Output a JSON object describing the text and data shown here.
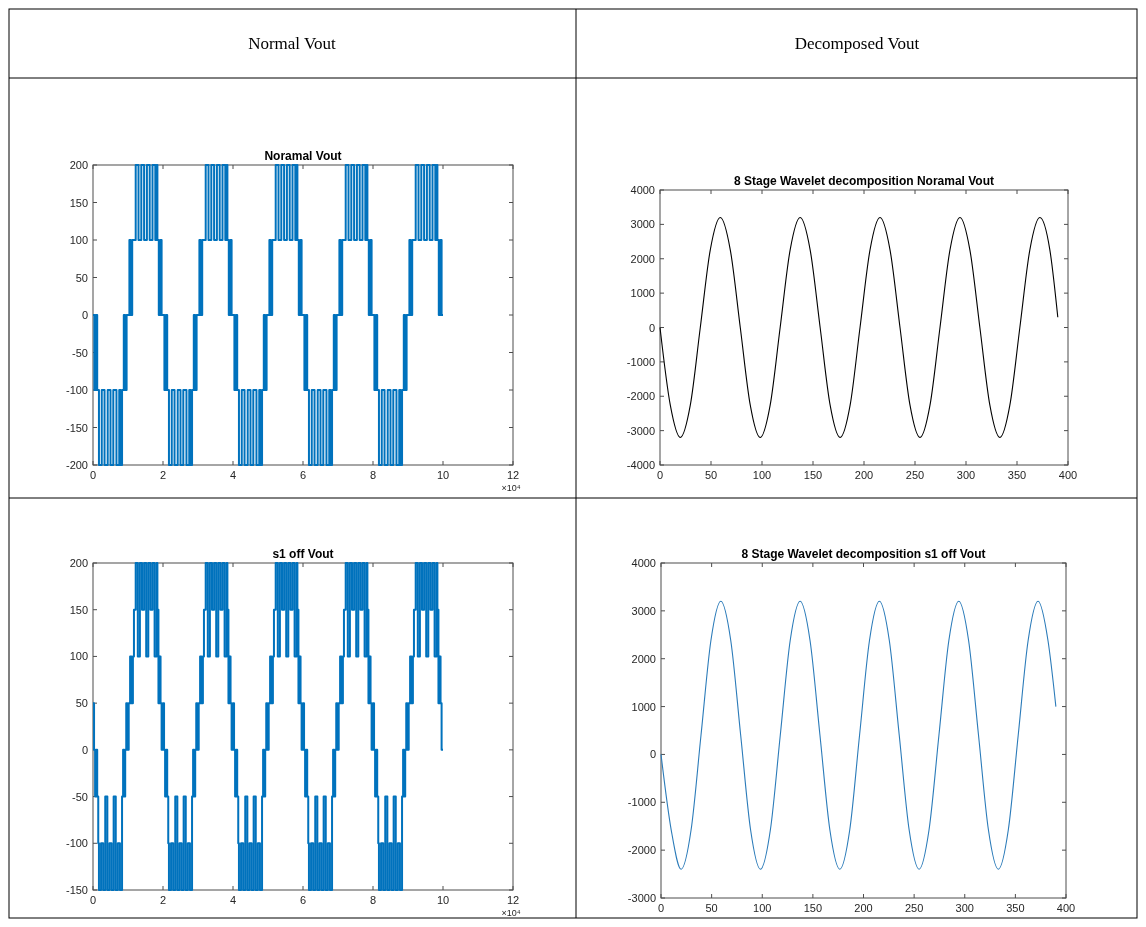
{
  "chart_data": [
    {
      "type": "step",
      "title": "Noramal Vout",
      "annotations": [
        "Normal Vout",
        "×10⁴"
      ],
      "xlim": [
        0,
        12
      ],
      "xticks": [
        0,
        2,
        4,
        6,
        8,
        10,
        12
      ],
      "ylim": [
        -200,
        200
      ],
      "yticks": [
        -200,
        -150,
        -100,
        -50,
        0,
        50,
        100,
        150,
        200
      ],
      "series": [
        {
          "color": "#0072bd",
          "x": [
            0,
            0.04,
            0.08,
            0.12,
            0.17,
            0.25,
            0.33,
            0.42,
            0.5,
            0.58,
            0.67,
            0.75,
            0.79,
            0.83,
            0.88,
            0.92,
            0.96,
            1.04,
            1.08,
            1.12,
            1.22,
            1.3,
            1.38,
            1.46,
            1.54,
            1.62,
            1.7,
            1.78,
            1.82,
            1.84,
            1.88,
            1.92,
            1.96,
            2,
            2.04,
            2.08,
            2.12,
            2.17,
            2.25,
            2.33,
            2.42,
            2.5,
            2.58,
            2.67,
            2.75,
            2.79,
            2.83,
            2.88,
            2.92,
            2.96,
            3.04,
            3.08,
            3.12,
            3.22,
            3.3,
            3.38,
            3.46,
            3.54,
            3.62,
            3.7,
            3.78,
            3.82,
            3.84,
            3.88,
            3.92,
            3.96,
            4,
            4.04,
            4.08,
            4.12,
            4.17,
            4.25,
            4.33,
            4.42,
            4.5,
            4.58,
            4.67,
            4.75,
            4.79,
            4.83,
            4.88,
            4.92,
            4.96,
            5.04,
            5.08,
            5.12,
            5.22,
            5.3,
            5.38,
            5.46,
            5.54,
            5.62,
            5.7,
            5.78,
            5.82,
            5.84,
            5.88,
            5.92,
            5.96,
            6,
            6.04,
            6.08,
            6.12,
            6.17,
            6.25,
            6.33,
            6.42,
            6.5,
            6.58,
            6.67,
            6.75,
            6.79,
            6.83,
            6.88,
            6.92,
            6.96,
            7.04,
            7.08,
            7.12,
            7.22,
            7.3,
            7.38,
            7.46,
            7.54,
            7.62,
            7.7,
            7.78,
            7.82,
            7.84,
            7.88,
            7.92,
            7.96,
            8,
            8.04,
            8.08,
            8.12,
            8.17,
            8.25,
            8.33,
            8.42,
            8.5,
            8.58,
            8.67,
            8.75,
            8.79,
            8.83,
            8.88,
            8.92,
            8.96,
            9.04,
            9.08,
            9.12,
            9.22,
            9.3,
            9.38,
            9.46,
            9.54,
            9.62,
            9.7,
            9.78,
            9.82,
            9.84,
            9.88,
            9.92,
            9.96,
            10
          ],
          "values": [
            0,
            -100,
            0,
            -100,
            -200,
            -100,
            -200,
            -100,
            -200,
            -100,
            -200,
            -100,
            -200,
            -100,
            0,
            -100,
            0,
            100,
            0,
            100,
            200,
            100,
            200,
            100,
            200,
            100,
            200,
            100,
            200,
            100,
            0,
            100,
            0,
            0,
            -100,
            0,
            -100,
            -200,
            -100,
            -200,
            -100,
            -200,
            -100,
            -200,
            -100,
            -200,
            -100,
            0,
            -100,
            0,
            100,
            0,
            100,
            200,
            100,
            200,
            100,
            200,
            100,
            200,
            100,
            200,
            100,
            0,
            100,
            0,
            0,
            -100,
            0,
            -100,
            -200,
            -100,
            -200,
            -100,
            -200,
            -100,
            -200,
            -100,
            -200,
            -100,
            0,
            -100,
            0,
            100,
            0,
            100,
            200,
            100,
            200,
            100,
            200,
            100,
            200,
            100,
            200,
            100,
            0,
            100,
            0,
            0,
            -100,
            0,
            -100,
            -200,
            -100,
            -200,
            -100,
            -200,
            -100,
            -200,
            -100,
            -200,
            -100,
            0,
            -100,
            0,
            100,
            0,
            100,
            200,
            100,
            200,
            100,
            200,
            100,
            200,
            100,
            200,
            100,
            0,
            100,
            0,
            0,
            -100,
            0,
            -100,
            -200,
            -100,
            -200,
            -100,
            -200,
            -100,
            -200,
            -100,
            -200,
            -100,
            0,
            -100,
            0,
            100,
            0,
            100,
            200,
            100,
            200,
            100,
            200,
            100,
            200,
            100,
            200,
            100,
            0,
            100,
            0,
            0
          ]
        }
      ]
    },
    {
      "type": "line",
      "title": "8 Stage Wavelet decomposition Noramal Vout",
      "annotations": [
        "Decomposed Vout"
      ],
      "xlim": [
        0,
        400
      ],
      "xticks": [
        0,
        50,
        100,
        150,
        200,
        250,
        300,
        350,
        400
      ],
      "ylim": [
        -4000,
        4000
      ],
      "yticks": [
        -4000,
        -3000,
        -2000,
        -1000,
        0,
        1000,
        2000,
        3000,
        4000
      ],
      "series": [
        {
          "color": "#000000",
          "x": [
            0,
            10.1,
            19.9,
            29.7,
            39.5,
            49.3,
            59.1,
            68.9,
            78.7,
            88.5,
            98.2,
            108.0,
            117.8,
            127.6,
            137.4,
            147.2,
            157.0,
            166.8,
            176.6,
            186.4,
            196.1,
            205.9,
            215.7,
            225.5,
            235.3,
            245.1,
            254.9,
            264.7,
            274.5,
            284.3,
            294.1,
            303.8,
            313.6,
            323.4,
            333.2,
            343.0,
            352.8,
            362.6,
            372.4,
            382.2,
            390
          ],
          "values": [
            0,
            -2260,
            -3200,
            -2260,
            0,
            2260,
            3200,
            2260,
            0,
            -2260,
            -3200,
            -2260,
            0,
            2260,
            3200,
            2260,
            0,
            -2260,
            -3200,
            -2260,
            0,
            2260,
            3200,
            2260,
            0,
            -2260,
            -3200,
            -2260,
            0,
            2260,
            3200,
            2260,
            0,
            -2260,
            -3200,
            -2260,
            0,
            2260,
            3200,
            2260,
            300
          ]
        }
      ]
    },
    {
      "type": "step",
      "title": "s1 off Vout",
      "annotations": [
        "×10⁴"
      ],
      "xlim": [
        0,
        12
      ],
      "xticks": [
        0,
        2,
        4,
        6,
        8,
        10,
        12
      ],
      "ylim": [
        -150,
        200
      ],
      "yticks": [
        -150,
        -100,
        -50,
        0,
        50,
        100,
        150,
        200
      ],
      "series": [
        {
          "color": "#0072bd",
          "x": [
            0,
            0.03,
            0.06,
            0.09,
            0.12,
            0.15,
            0.17,
            0.23,
            0.29,
            0.35,
            0.41,
            0.47,
            0.53,
            0.59,
            0.65,
            0.71,
            0.77,
            0.83,
            0.86,
            0.89,
            0.92,
            0.95,
            0.98,
            1.02,
            1.06,
            1.1,
            1.14,
            1.17,
            1.22,
            1.28,
            1.34,
            1.4,
            1.46,
            1.52,
            1.58,
            1.64,
            1.7,
            1.76,
            1.82,
            1.84,
            1.87,
            1.9,
            1.93,
            1.96,
            2,
            2.03,
            2.06,
            2.09,
            2.12,
            2.15,
            2.17,
            2.23,
            2.29,
            2.35,
            2.41,
            2.47,
            2.53,
            2.59,
            2.65,
            2.71,
            2.77,
            2.83,
            2.86,
            2.89,
            2.92,
            2.95,
            2.98,
            3.02,
            3.06,
            3.1,
            3.14,
            3.17,
            3.22,
            3.28,
            3.34,
            3.4,
            3.46,
            3.52,
            3.58,
            3.64,
            3.7,
            3.76,
            3.82,
            3.84,
            3.87,
            3.9,
            3.93,
            3.96,
            4,
            4.03,
            4.06,
            4.09,
            4.12,
            4.15,
            4.17,
            4.23,
            4.29,
            4.35,
            4.41,
            4.47,
            4.53,
            4.59,
            4.65,
            4.71,
            4.77,
            4.83,
            4.86,
            4.89,
            4.92,
            4.95,
            4.98,
            5.02,
            5.06,
            5.1,
            5.14,
            5.17,
            5.22,
            5.28,
            5.34,
            5.4,
            5.46,
            5.52,
            5.58,
            5.64,
            5.7,
            5.76,
            5.82,
            5.84,
            5.87,
            5.9,
            5.93,
            5.96,
            6,
            6.03,
            6.06,
            6.09,
            6.12,
            6.15,
            6.17,
            6.23,
            6.29,
            6.35,
            6.41,
            6.47,
            6.53,
            6.59,
            6.65,
            6.71,
            6.77,
            6.83,
            6.86,
            6.89,
            6.92,
            6.95,
            6.98,
            7.02,
            7.06,
            7.1,
            7.14,
            7.17,
            7.22,
            7.28,
            7.34,
            7.4,
            7.46,
            7.52,
            7.58,
            7.64,
            7.7,
            7.76,
            7.82,
            7.84,
            7.87,
            7.9,
            7.93,
            7.96,
            8,
            8.03,
            8.06,
            8.09,
            8.12,
            8.15,
            8.17,
            8.23,
            8.29,
            8.35,
            8.41,
            8.47,
            8.53,
            8.59,
            8.65,
            8.71,
            8.77,
            8.83,
            8.86,
            8.89,
            8.92,
            8.95,
            8.98,
            9.02,
            9.06,
            9.1,
            9.14,
            9.17,
            9.22,
            9.28,
            9.34,
            9.4,
            9.46,
            9.52,
            9.58,
            9.64,
            9.7,
            9.76,
            9.82,
            9.84,
            9.87,
            9.9,
            9.93,
            9.96,
            10
          ],
          "values": [
            50,
            0,
            -50,
            0,
            -50,
            -100,
            -150,
            -100,
            -150,
            -50,
            -150,
            -100,
            -150,
            -50,
            -150,
            -100,
            -150,
            -50,
            0,
            -50,
            0,
            50,
            0,
            50,
            100,
            50,
            100,
            150,
            200,
            100,
            200,
            150,
            200,
            100,
            200,
            150,
            200,
            100,
            200,
            150,
            50,
            100,
            50,
            0,
            50,
            0,
            -50,
            0,
            -50,
            -100,
            -150,
            -100,
            -150,
            -50,
            -150,
            -100,
            -150,
            -50,
            -150,
            -100,
            -150,
            -50,
            0,
            -50,
            0,
            50,
            0,
            50,
            100,
            50,
            100,
            150,
            200,
            100,
            200,
            150,
            200,
            100,
            200,
            150,
            200,
            100,
            200,
            150,
            50,
            100,
            50,
            0,
            50,
            0,
            -50,
            0,
            -50,
            -100,
            -150,
            -100,
            -150,
            -50,
            -150,
            -100,
            -150,
            -50,
            -150,
            -100,
            -150,
            -50,
            0,
            -50,
            0,
            50,
            0,
            50,
            100,
            50,
            100,
            150,
            200,
            100,
            200,
            150,
            200,
            100,
            200,
            150,
            200,
            100,
            200,
            150,
            50,
            100,
            50,
            0,
            50,
            0,
            -50,
            0,
            -50,
            -100,
            -150,
            -100,
            -150,
            -50,
            -150,
            -100,
            -150,
            -50,
            -150,
            -100,
            -150,
            -50,
            0,
            -50,
            0,
            50,
            0,
            50,
            100,
            50,
            100,
            150,
            200,
            100,
            200,
            150,
            200,
            100,
            200,
            150,
            200,
            100,
            200,
            150,
            50,
            100,
            50,
            0,
            50,
            0,
            -50,
            0,
            -50,
            -100,
            -150,
            -100,
            -150,
            -50,
            -150,
            -100,
            -150,
            -50,
            -150,
            -100,
            -150,
            -50,
            0,
            -50,
            0,
            50,
            0,
            50,
            100,
            50,
            100,
            150,
            200,
            100,
            200,
            150,
            200,
            100,
            200,
            150,
            200,
            100,
            200,
            150,
            50,
            100,
            50,
            0,
            0
          ]
        }
      ]
    },
    {
      "type": "line",
      "title": "8 Stage Wavelet decomposition s1 off Vout",
      "xlim": [
        0,
        400
      ],
      "xticks": [
        0,
        50,
        100,
        150,
        200,
        250,
        300,
        350,
        400
      ],
      "ylim": [
        -3000,
        4000
      ],
      "yticks": [
        -3000,
        -2000,
        -1000,
        0,
        1000,
        2000,
        3000,
        4000
      ],
      "series": [
        {
          "color": "#2b7bb9",
          "x": [
            0,
            10.1,
            19.9,
            29.7,
            39.5,
            49.3,
            59.1,
            68.9,
            78.7,
            88.5,
            98.2,
            108.0,
            117.8,
            127.6,
            137.4,
            147.2,
            157.0,
            166.8,
            176.6,
            186.4,
            196.1,
            205.9,
            215.7,
            225.5,
            235.3,
            245.1,
            254.9,
            264.7,
            274.5,
            284.3,
            294.1,
            303.8,
            313.6,
            323.4,
            333.2,
            343.0,
            352.8,
            362.6,
            372.4,
            382.2,
            390
          ],
          "values": [
            0,
            -1580,
            -2400,
            -1580,
            400,
            2380,
            3200,
            2380,
            400,
            -1580,
            -2400,
            -1580,
            400,
            2380,
            3200,
            2380,
            400,
            -1580,
            -2400,
            -1580,
            400,
            2380,
            3200,
            2380,
            400,
            -1580,
            -2400,
            -1580,
            400,
            2380,
            3200,
            2380,
            400,
            -1580,
            -2400,
            -1580,
            400,
            2380,
            3200,
            2380,
            1000
          ]
        }
      ]
    }
  ]
}
